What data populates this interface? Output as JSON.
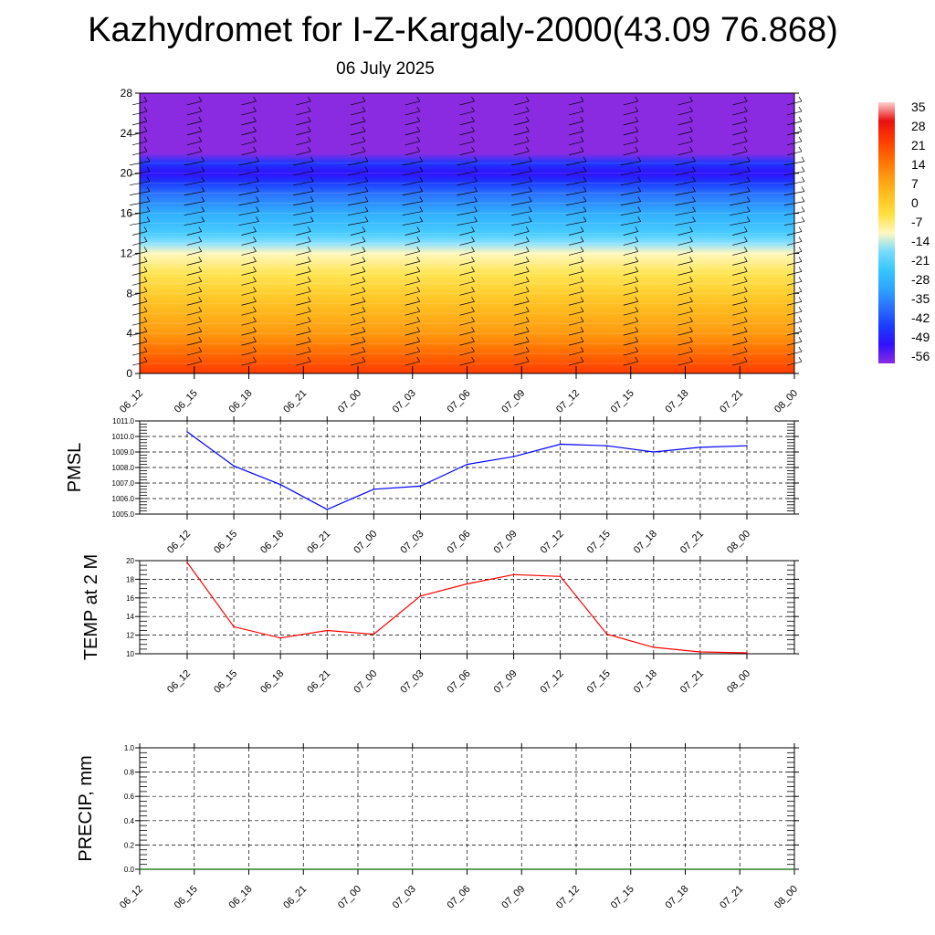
{
  "header": {
    "title": "Kazhydromet for I-Z-Kargaly-2000(43.09 76.868)",
    "subtitle": "06 July 2025"
  },
  "chart_data": [
    {
      "type": "heatmap",
      "name": "cross-section",
      "x_ticks": [
        "06_12",
        "06_15",
        "06_18",
        "06_21",
        "07_00",
        "07_03",
        "07_06",
        "07_09",
        "07_12",
        "07_15",
        "07_18",
        "07_21",
        "08_00"
      ],
      "y_ticks": [
        0,
        4,
        8,
        12,
        16,
        20,
        24,
        28
      ],
      "ylim": [
        0,
        28
      ],
      "colorbar": {
        "labels": [
          "35",
          "28",
          "21",
          "14",
          "7",
          "0",
          "-7",
          "-14",
          "-21",
          "-28",
          "-35",
          "-42",
          "-49",
          "-56"
        ]
      },
      "temperature_profile": [
        {
          "level": 0,
          "value": 21
        },
        {
          "level": 2,
          "value": 14
        },
        {
          "level": 4,
          "value": 7
        },
        {
          "level": 6,
          "value": 2
        },
        {
          "level": 8,
          "value": -3
        },
        {
          "level": 10,
          "value": -8
        },
        {
          "level": 12,
          "value": -14
        },
        {
          "level": 13,
          "value": -20
        },
        {
          "level": 14,
          "value": -26
        },
        {
          "level": 16,
          "value": -33
        },
        {
          "level": 18,
          "value": -42
        },
        {
          "level": 19,
          "value": -49
        },
        {
          "level": 20,
          "value": -56
        },
        {
          "level": 21,
          "value": -50
        },
        {
          "level": 22,
          "value": -63
        },
        {
          "level": 28,
          "value": -63
        }
      ],
      "wind_barbs": true
    },
    {
      "type": "line",
      "name": "pmsl",
      "ylabel": "PMSL",
      "x": [
        "06_12",
        "06_15",
        "06_18",
        "06_21",
        "07_00",
        "07_03",
        "07_06",
        "07_09",
        "07_12",
        "07_15",
        "07_18",
        "07_21",
        "08_00"
      ],
      "series": [
        {
          "color": "#0000ff",
          "values": [
            1010.3,
            1008.1,
            1006.9,
            1005.3,
            1006.6,
            1006.8,
            1008.2,
            1008.7,
            1009.5,
            1009.4,
            1009.0,
            1009.3,
            1009.4
          ]
        }
      ],
      "y_ticks": [
        "1005.0",
        "1006.0",
        "1007.0",
        "1008.0",
        "1009.0",
        "1010.0",
        "1011.0"
      ],
      "ylim": [
        1005,
        1011
      ]
    },
    {
      "type": "line",
      "name": "temp2m",
      "ylabel": "TEMP at 2 M",
      "x": [
        "06_12",
        "06_15",
        "06_18",
        "06_21",
        "07_00",
        "07_03",
        "07_06",
        "07_09",
        "07_12",
        "07_15",
        "07_18",
        "07_21",
        "08_00"
      ],
      "series": [
        {
          "color": "#ff0000",
          "values": [
            19.8,
            12.9,
            11.7,
            12.5,
            12.1,
            16.2,
            17.5,
            18.5,
            18.3,
            12.1,
            10.7,
            10.2,
            10.1
          ]
        }
      ],
      "y_ticks": [
        "10",
        "12",
        "14",
        "16",
        "18",
        "20"
      ],
      "ylim": [
        10,
        20
      ]
    },
    {
      "type": "line",
      "name": "precip",
      "ylabel": "PRECIP, mm",
      "x": [
        "06_12",
        "06_15",
        "06_18",
        "06_21",
        "07_00",
        "07_03",
        "07_06",
        "07_09",
        "07_12",
        "07_15",
        "07_18",
        "07_21",
        "08_00"
      ],
      "series": [
        {
          "color": "#006400",
          "values": [
            0,
            0,
            0,
            0,
            0,
            0,
            0,
            0,
            0,
            0,
            0,
            0,
            0
          ]
        }
      ],
      "y_ticks": [
        "0.0",
        "0.2",
        "0.4",
        "0.6",
        "0.8",
        "1.0"
      ],
      "ylim": [
        0,
        1
      ]
    }
  ]
}
